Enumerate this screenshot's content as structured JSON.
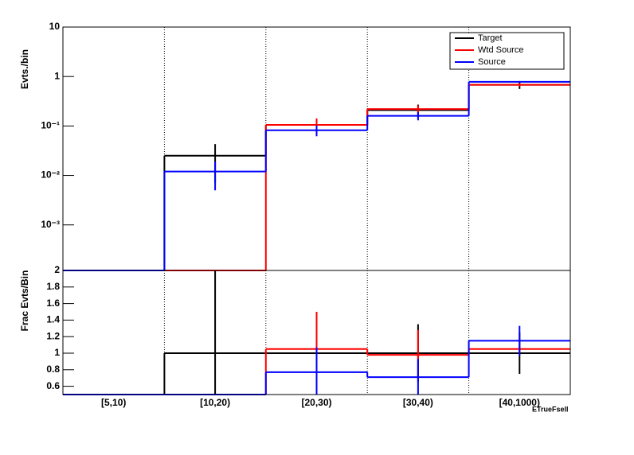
{
  "chart_data": [
    {
      "type": "step",
      "y_label": "Evts./bin",
      "log_y": true,
      "ylim": [
        0.00012,
        10
      ],
      "yticks": [
        {
          "value": 0.001,
          "label": "10⁻³"
        },
        {
          "value": 0.01,
          "label": "10⁻²"
        },
        {
          "value": 0.1,
          "label": "10⁻¹"
        },
        1,
        10
      ],
      "legend": "top-right",
      "series": [
        {
          "name": "Target",
          "color": "#000000",
          "values": [
            null,
            0.025,
            0.105,
            0.21,
            0.68
          ],
          "errors": [
            null,
            0.018,
            0.03,
            0.06,
            0.12
          ]
        },
        {
          "name": "Wtd Source",
          "color": "#ff0000",
          "values": [
            null,
            null,
            0.105,
            0.22,
            0.68
          ],
          "errors": [
            null,
            null,
            0.037,
            0.04,
            0.05
          ]
        },
        {
          "name": "Source",
          "color": "#0000ff",
          "values": [
            null,
            0.012,
            0.082,
            0.16,
            0.78
          ],
          "errors": [
            null,
            0.007,
            0.02,
            0.03,
            0.03
          ]
        }
      ]
    },
    {
      "type": "step",
      "y_label": "Frac Evts/Bin",
      "x_label": "ETrueFsell",
      "categories": [
        "[5,10)",
        "[10,20)",
        "[20,30)",
        "[30,40)",
        "[40,1000)"
      ],
      "ylim": [
        0.5,
        2
      ],
      "yticks": [
        0.6,
        0.8,
        1,
        1.2,
        1.4,
        1.6,
        1.8,
        2
      ],
      "series": [
        {
          "color": "#000000",
          "values": [
            null,
            1,
            1,
            1,
            1
          ],
          "errors": [
            null,
            1.5,
            0.1,
            0.35,
            0.25
          ]
        },
        {
          "color": "#ff0000",
          "values": [
            null,
            null,
            1.05,
            0.98,
            1.05
          ],
          "errors": [
            null,
            null,
            0.45,
            0.3,
            0.05
          ]
        },
        {
          "color": "#0000ff",
          "values": [
            null,
            null,
            0.77,
            0.71,
            1.15
          ],
          "errors": [
            null,
            null,
            0.3,
            0.22,
            0.18
          ]
        }
      ]
    }
  ]
}
